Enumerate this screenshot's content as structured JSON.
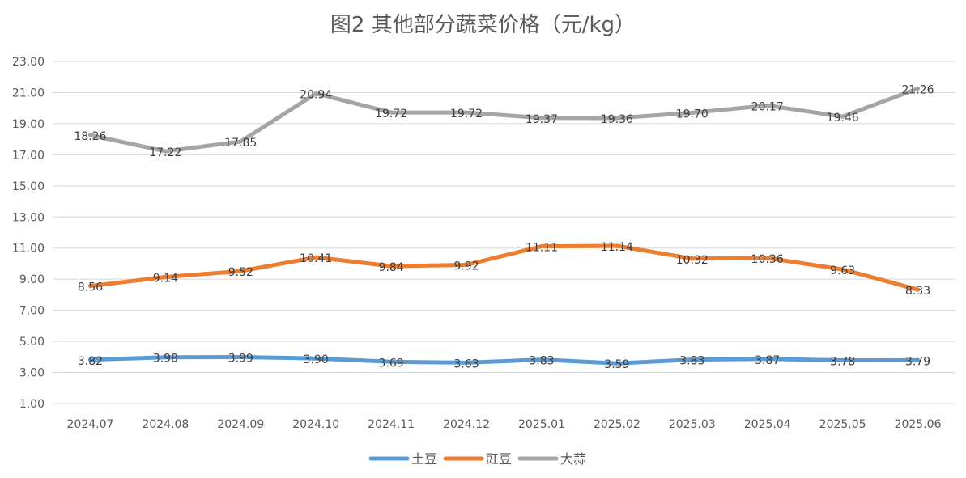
{
  "chart_data": {
    "type": "line",
    "title": "图2  其他部分蔬菜价格（元/kg）",
    "xlabel": "",
    "ylabel": "",
    "ylim": [
      1.0,
      23.0
    ],
    "yticks": [
      "1.00",
      "3.00",
      "5.00",
      "7.00",
      "9.00",
      "11.00",
      "13.00",
      "15.00",
      "17.00",
      "19.00",
      "21.00",
      "23.00"
    ],
    "grid": true,
    "legend_position": "bottom",
    "categories": [
      "2024.07",
      "2024.08",
      "2024.09",
      "2024.10",
      "2024.11",
      "2024.12",
      "2025.01",
      "2025.02",
      "2025.03",
      "2025.04",
      "2025.05",
      "2025.06"
    ],
    "series": [
      {
        "name": "土豆",
        "color": "#5B9BD5",
        "values": [
          3.82,
          3.98,
          3.99,
          3.9,
          3.69,
          3.63,
          3.83,
          3.59,
          3.83,
          3.87,
          3.78,
          3.79
        ]
      },
      {
        "name": "豇豆",
        "color": "#ED7D31",
        "values": [
          8.56,
          9.14,
          9.52,
          10.41,
          9.84,
          9.92,
          11.11,
          11.14,
          10.32,
          10.36,
          9.63,
          8.33
        ]
      },
      {
        "name": "大蒜",
        "color": "#A5A5A5",
        "values": [
          18.26,
          17.22,
          17.85,
          20.94,
          19.72,
          19.72,
          19.37,
          19.36,
          19.7,
          20.17,
          19.46,
          21.26
        ]
      }
    ]
  }
}
